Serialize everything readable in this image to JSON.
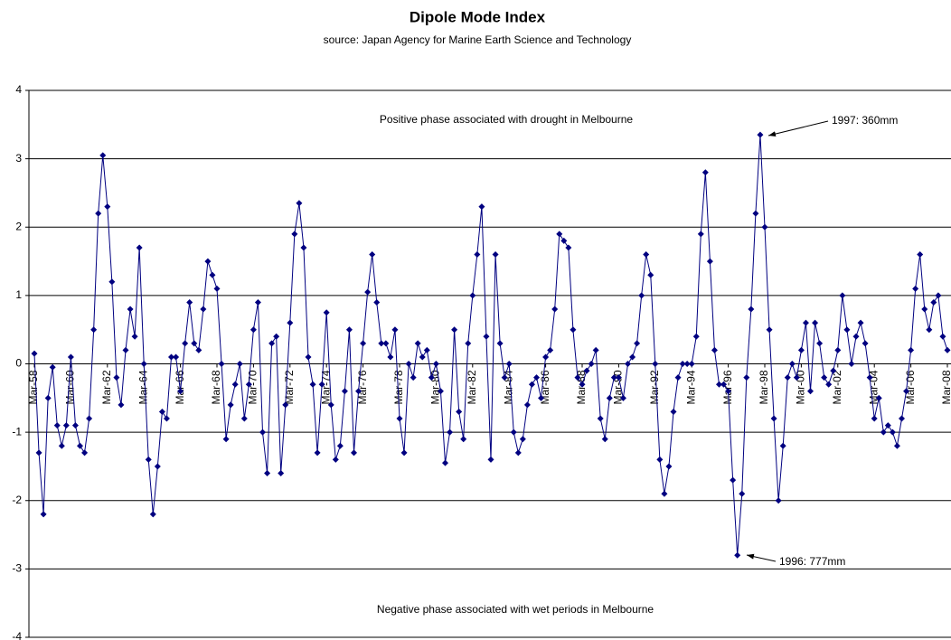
{
  "chart_data": {
    "type": "line",
    "title": "Dipole Mode Index",
    "subtitle": "source: Japan Agency for Marine Earth Science and Technology",
    "annotations": [
      "Positive phase associated with drought in Melbourne",
      "Negative phase associated with wet periods in Melbourne",
      "1997: 360mm",
      "1996: 777mm"
    ],
    "categories": [
      "Mar-58",
      null,
      null,
      null,
      null,
      null,
      null,
      null,
      "Mar-60",
      null,
      null,
      null,
      null,
      null,
      null,
      null,
      "Mar-62",
      null,
      null,
      null,
      null,
      null,
      null,
      null,
      "Mar-64",
      null,
      null,
      null,
      null,
      null,
      null,
      null,
      "Mar-66",
      null,
      null,
      null,
      null,
      null,
      null,
      null,
      "Mar-68",
      null,
      null,
      null,
      null,
      null,
      null,
      null,
      "Mar-70",
      null,
      null,
      null,
      null,
      null,
      null,
      null,
      "Mar-72",
      null,
      null,
      null,
      null,
      null,
      null,
      null,
      "Mar-74",
      null,
      null,
      null,
      null,
      null,
      null,
      null,
      "Mar-76",
      null,
      null,
      null,
      null,
      null,
      null,
      null,
      "Mar-78",
      null,
      null,
      null,
      null,
      null,
      null,
      null,
      "Mar-80",
      null,
      null,
      null,
      null,
      null,
      null,
      null,
      "Mar-82",
      null,
      null,
      null,
      null,
      null,
      null,
      null,
      "Mar-84",
      null,
      null,
      null,
      null,
      null,
      null,
      null,
      "Mar-86",
      null,
      null,
      null,
      null,
      null,
      null,
      null,
      "Mar-88",
      null,
      null,
      null,
      null,
      null,
      null,
      null,
      "Mar-90",
      null,
      null,
      null,
      null,
      null,
      null,
      null,
      "Mar-92",
      null,
      null,
      null,
      null,
      null,
      null,
      null,
      "Mar-94",
      null,
      null,
      null,
      null,
      null,
      null,
      null,
      "Mar-96",
      null,
      null,
      null,
      null,
      null,
      null,
      null,
      "Mar-98",
      null,
      null,
      null,
      null,
      null,
      null,
      null,
      "Mar-00",
      null,
      null,
      null,
      null,
      null,
      null,
      null,
      "Mar-02",
      null,
      null,
      null,
      null,
      null,
      null,
      null,
      "Mar-04",
      null,
      null,
      null,
      null,
      null,
      null,
      null,
      "Mar-06",
      null,
      null,
      null,
      null,
      null,
      null,
      null,
      "Mar-08"
    ],
    "series": [
      {
        "name": "Dipole Mode Index",
        "color": "#000080",
        "values": [
          0.15,
          -1.3,
          -2.2,
          -0.5,
          -0.05,
          -0.9,
          -1.2,
          -0.9,
          0.1,
          -0.9,
          -1.2,
          -1.3,
          -0.8,
          0.5,
          2.2,
          3.05,
          2.3,
          1.2,
          -0.2,
          -0.6,
          0.2,
          0.8,
          0.4,
          1.7,
          0.0,
          -1.4,
          -2.2,
          -1.5,
          -0.7,
          -0.8,
          0.1,
          0.1,
          -0.4,
          0.3,
          0.9,
          0.3,
          0.2,
          0.8,
          1.5,
          1.3,
          1.1,
          0.0,
          -1.1,
          -0.6,
          -0.3,
          0.0,
          -0.8,
          -0.3,
          0.5,
          0.9,
          -1.0,
          -1.6,
          0.3,
          0.4,
          -1.6,
          -0.6,
          0.6,
          1.9,
          2.35,
          1.7,
          0.1,
          -0.3,
          -1.3,
          -0.3,
          0.75,
          -0.6,
          -1.4,
          -1.2,
          -0.4,
          0.5,
          -1.3,
          -0.4,
          0.3,
          1.05,
          1.6,
          0.9,
          0.3,
          0.3,
          0.1,
          0.5,
          -0.8,
          -1.3,
          0.0,
          -0.2,
          0.3,
          0.1,
          0.2,
          -0.2,
          0.0,
          -0.4,
          -1.45,
          -1.0,
          0.5,
          -0.7,
          -1.1,
          0.3,
          1.0,
          1.6,
          2.3,
          0.4,
          -1.4,
          1.6,
          0.3,
          -0.2,
          0.0,
          -1.0,
          -1.3,
          -1.1,
          -0.6,
          -0.3,
          -0.2,
          -0.5,
          0.1,
          0.2,
          0.8,
          1.9,
          1.8,
          1.7,
          0.5,
          -0.2,
          -0.3,
          -0.1,
          0.0,
          0.2,
          -0.8,
          -1.1,
          -0.5,
          -0.2,
          -0.2,
          -0.5,
          0.0,
          0.1,
          0.3,
          1.0,
          1.6,
          1.3,
          0.0,
          -1.4,
          -1.9,
          -1.5,
          -0.7,
          -0.2,
          0.0,
          0.0,
          0.0,
          0.4,
          1.9,
          2.8,
          1.5,
          0.2,
          -0.3,
          -0.3,
          -0.4,
          -1.7,
          -2.8,
          -1.9,
          -0.2,
          0.8,
          2.2,
          3.35,
          2.0,
          0.5,
          -0.8,
          -2.0,
          -1.2,
          -0.2,
          0.0,
          -0.2,
          0.2,
          0.6,
          -0.4,
          0.6,
          0.3,
          -0.2,
          -0.3,
          -0.1,
          0.2,
          1.0,
          0.5,
          0.0,
          0.4,
          0.6,
          0.3,
          -0.2,
          -0.8,
          -0.5,
          -1.0,
          -0.9,
          -1.0,
          -1.2,
          -0.8,
          -0.4,
          0.2,
          1.1,
          1.6,
          0.8,
          0.5,
          0.9,
          1.0,
          0.4,
          0.2
        ]
      }
    ],
    "ylim": [
      -4,
      4
    ],
    "yticks": [
      -4,
      -3,
      -2,
      -1,
      0,
      1,
      2,
      3,
      4
    ],
    "grid": true,
    "markers": "diamond"
  }
}
